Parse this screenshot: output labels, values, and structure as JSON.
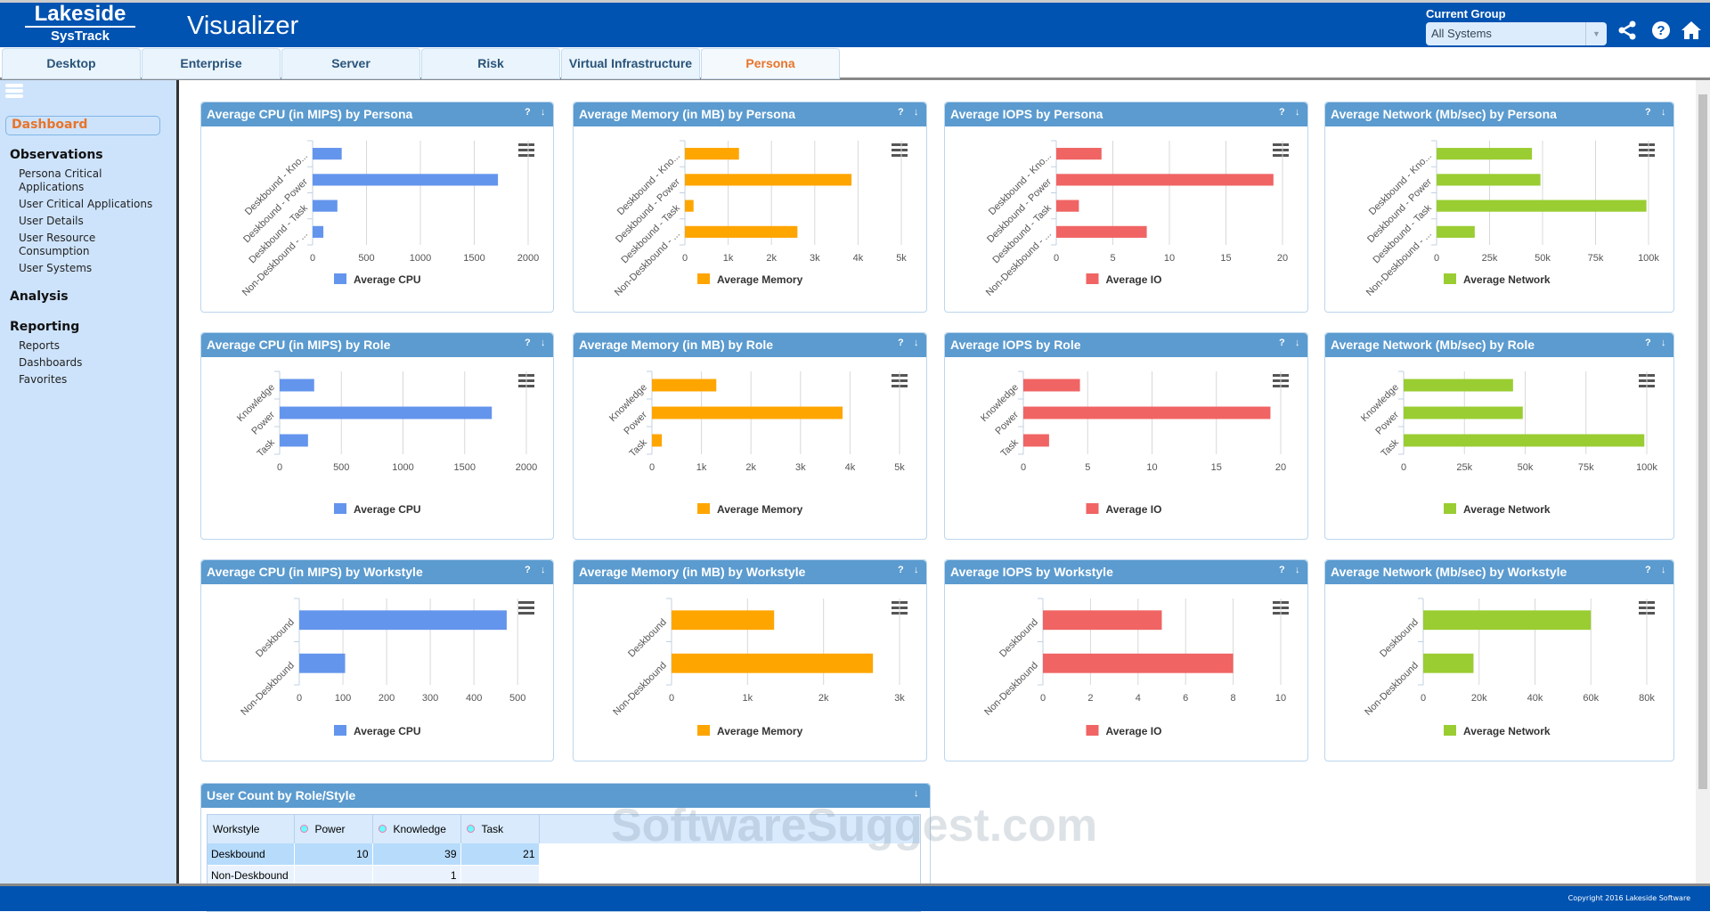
{
  "header": {
    "logo_top": "Lakeside",
    "logo_bottom": "SysTrack",
    "app_title": "Visualizer",
    "group_label": "Current Group",
    "group_value": "All Systems"
  },
  "tabs": [
    "Desktop",
    "Enterprise",
    "Server",
    "Risk",
    "Virtual Infrastructure",
    "Persona"
  ],
  "active_tab": "Persona",
  "sidebar": {
    "active": "Dashboard",
    "sections": [
      {
        "title": "Observations",
        "items": [
          "Persona Critical Applications",
          "User Critical Applications",
          "User Details",
          "User Resource Consumption",
          "User Systems"
        ]
      },
      {
        "title": "Analysis",
        "items": []
      },
      {
        "title": "Reporting",
        "items": [
          "Reports",
          "Dashboards",
          "Favorites"
        ]
      }
    ]
  },
  "colors": {
    "cpu": "#6495ed",
    "memory": "#ffa500",
    "io": "#f06464",
    "network": "#9acd32",
    "header": "#0153b1"
  },
  "chart_data": [
    {
      "type": "bar",
      "orientation": "horizontal",
      "title": "Average CPU (in MIPS) by Persona",
      "categories": [
        "Deskbound - Kno...",
        "Deskbound - Power",
        "Deskbound - Task",
        "Non-Deskbound - ..."
      ],
      "values": [
        270,
        1720,
        230,
        100
      ],
      "series_name": "Average CPU",
      "color": "#6495ed",
      "xlim": [
        0,
        2000
      ],
      "ticks": [
        0,
        500,
        1000,
        1500,
        2000
      ],
      "tick_labels": [
        "0",
        "500",
        "1000",
        "1500",
        "2000"
      ]
    },
    {
      "type": "bar",
      "orientation": "horizontal",
      "title": "Average Memory (in MB) by Persona",
      "categories": [
        "Deskbound - Kno...",
        "Deskbound - Power",
        "Deskbound - Task",
        "Non-Deskbound - ..."
      ],
      "values": [
        1250,
        3850,
        200,
        2600
      ],
      "series_name": "Average Memory",
      "color": "#ffa500",
      "xlim": [
        0,
        5000
      ],
      "ticks": [
        0,
        1000,
        2000,
        3000,
        4000,
        5000
      ],
      "tick_labels": [
        "0",
        "1k",
        "2k",
        "3k",
        "4k",
        "5k"
      ]
    },
    {
      "type": "bar",
      "orientation": "horizontal",
      "title": "Average IOPS by Persona",
      "categories": [
        "Deskbound - Kno...",
        "Deskbound - Power",
        "Deskbound - Task",
        "Non-Deskbound - ..."
      ],
      "values": [
        4,
        19.2,
        2,
        8
      ],
      "series_name": "Average IO",
      "color": "#f06464",
      "xlim": [
        0,
        20
      ],
      "ticks": [
        0,
        5,
        10,
        15,
        20
      ],
      "tick_labels": [
        "0",
        "5",
        "10",
        "15",
        "20"
      ]
    },
    {
      "type": "bar",
      "orientation": "horizontal",
      "title": "Average Network (Mb/sec) by Persona",
      "categories": [
        "Deskbound - Kno...",
        "Deskbound - Power",
        "Deskbound - Task",
        "Non-Deskbound - ..."
      ],
      "values": [
        45000,
        49000,
        99000,
        18000
      ],
      "series_name": "Average Network",
      "color": "#9acd32",
      "xlim": [
        0,
        100000
      ],
      "ticks": [
        0,
        25000,
        50000,
        75000,
        100000
      ],
      "tick_labels": [
        "0",
        "25k",
        "50k",
        "75k",
        "100k"
      ]
    },
    {
      "type": "bar",
      "orientation": "horizontal",
      "title": "Average CPU (in MIPS) by Role",
      "categories": [
        "Knowledge",
        "Power",
        "Task"
      ],
      "values": [
        280,
        1720,
        230
      ],
      "series_name": "Average CPU",
      "color": "#6495ed",
      "xlim": [
        0,
        2000
      ],
      "ticks": [
        0,
        500,
        1000,
        1500,
        2000
      ],
      "tick_labels": [
        "0",
        "500",
        "1000",
        "1500",
        "2000"
      ]
    },
    {
      "type": "bar",
      "orientation": "horizontal",
      "title": "Average Memory (in MB) by Role",
      "categories": [
        "Knowledge",
        "Power",
        "Task"
      ],
      "values": [
        1300,
        3850,
        200
      ],
      "series_name": "Average Memory",
      "color": "#ffa500",
      "xlim": [
        0,
        5000
      ],
      "ticks": [
        0,
        1000,
        2000,
        3000,
        4000,
        5000
      ],
      "tick_labels": [
        "0",
        "1k",
        "2k",
        "3k",
        "4k",
        "5k"
      ]
    },
    {
      "type": "bar",
      "orientation": "horizontal",
      "title": "Average IOPS by Role",
      "categories": [
        "Knowledge",
        "Power",
        "Task"
      ],
      "values": [
        4.4,
        19.2,
        2
      ],
      "series_name": "Average IO",
      "color": "#f06464",
      "xlim": [
        0,
        20
      ],
      "ticks": [
        0,
        5,
        10,
        15,
        20
      ],
      "tick_labels": [
        "0",
        "5",
        "10",
        "15",
        "20"
      ]
    },
    {
      "type": "bar",
      "orientation": "horizontal",
      "title": "Average Network (Mb/sec) by Role",
      "categories": [
        "Knowledge",
        "Power",
        "Task"
      ],
      "values": [
        45000,
        49000,
        99000
      ],
      "series_name": "Average Network",
      "color": "#9acd32",
      "xlim": [
        0,
        100000
      ],
      "ticks": [
        0,
        25000,
        50000,
        75000,
        100000
      ],
      "tick_labels": [
        "0",
        "25k",
        "50k",
        "75k",
        "100k"
      ]
    },
    {
      "type": "bar",
      "orientation": "horizontal",
      "title": "Average CPU (in MIPS) by Workstyle",
      "categories": [
        "Deskbound",
        "Non-Deskbound"
      ],
      "values": [
        475,
        105
      ],
      "series_name": "Average CPU",
      "color": "#6495ed",
      "xlim": [
        0,
        520
      ],
      "ticks": [
        0,
        100,
        200,
        300,
        400,
        500
      ],
      "tick_labels": [
        "0",
        "100",
        "200",
        "300",
        "400",
        "500"
      ]
    },
    {
      "type": "bar",
      "orientation": "horizontal",
      "title": "Average Memory (in MB) by Workstyle",
      "categories": [
        "Deskbound",
        "Non-Deskbound"
      ],
      "values": [
        1350,
        2650
      ],
      "series_name": "Average Memory",
      "color": "#ffa500",
      "xlim": [
        0,
        3000
      ],
      "ticks": [
        0,
        1000,
        2000,
        3000
      ],
      "tick_labels": [
        "0",
        "1k",
        "2k",
        "3k"
      ]
    },
    {
      "type": "bar",
      "orientation": "horizontal",
      "title": "Average IOPS by Workstyle",
      "categories": [
        "Deskbound",
        "Non-Deskbound"
      ],
      "values": [
        5,
        8
      ],
      "series_name": "Average IO",
      "color": "#f06464",
      "xlim": [
        0,
        10
      ],
      "ticks": [
        0,
        2,
        4,
        6,
        8,
        10
      ],
      "tick_labels": [
        "0",
        "2",
        "4",
        "6",
        "8",
        "10"
      ]
    },
    {
      "type": "bar",
      "orientation": "horizontal",
      "title": "Average Network (Mb/sec) by Workstyle",
      "categories": [
        "Deskbound",
        "Non-Deskbound"
      ],
      "values": [
        60000,
        18000
      ],
      "series_name": "Average Network",
      "color": "#9acd32",
      "xlim": [
        0,
        80000
      ],
      "ticks": [
        0,
        20000,
        40000,
        60000,
        80000
      ],
      "tick_labels": [
        "0",
        "20k",
        "40k",
        "60k",
        "80k"
      ]
    },
    {
      "type": "table",
      "title": "User Count by Role/Style",
      "columns": [
        "Workstyle",
        "Power",
        "Knowledge",
        "Task"
      ],
      "rows": [
        [
          "Deskbound",
          "10",
          "39",
          "21"
        ],
        [
          "Non-Deskbound",
          "",
          "1",
          ""
        ]
      ]
    }
  ],
  "panel_icons": {
    "help": "?",
    "download": "↓"
  },
  "watermark": "SoftwareSuggest.com",
  "footer": {
    "copyright": "Copyright 2016 Lakeside Software"
  }
}
